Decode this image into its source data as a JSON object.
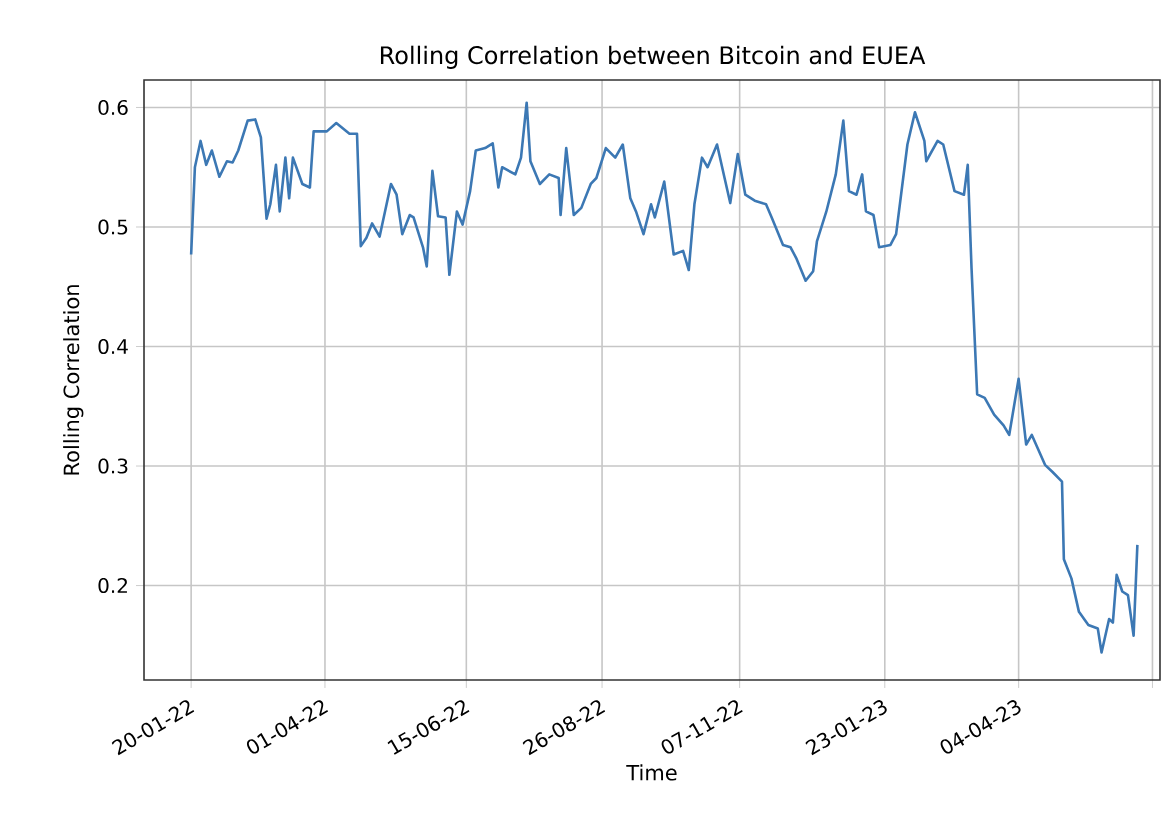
{
  "chart_data": {
    "type": "line",
    "title": "Rolling Correlation between Bitcoin and EUEA",
    "xlabel": "Time",
    "ylabel": "Rolling Correlation",
    "x": [
      "2022-01-20",
      "2022-01-22",
      "2022-01-25",
      "2022-01-28",
      "2022-01-31",
      "2022-02-04",
      "2022-02-08",
      "2022-02-11",
      "2022-02-14",
      "2022-02-19",
      "2022-02-23",
      "2022-02-26",
      "2022-03-01",
      "2022-03-03",
      "2022-03-06",
      "2022-03-08",
      "2022-03-11",
      "2022-03-13",
      "2022-03-15",
      "2022-03-20",
      "2022-03-24",
      "2022-03-26",
      "2022-04-02",
      "2022-04-07",
      "2022-04-14",
      "2022-04-18",
      "2022-04-20",
      "2022-04-23",
      "2022-04-26",
      "2022-04-30",
      "2022-05-06",
      "2022-05-09",
      "2022-05-12",
      "2022-05-16",
      "2022-05-18",
      "2022-05-23",
      "2022-05-25",
      "2022-05-28",
      "2022-05-31",
      "2022-06-04",
      "2022-06-06",
      "2022-06-10",
      "2022-06-13",
      "2022-06-17",
      "2022-06-20",
      "2022-06-25",
      "2022-06-29",
      "2022-07-02",
      "2022-07-04",
      "2022-07-11",
      "2022-07-14",
      "2022-07-17",
      "2022-07-19",
      "2022-07-24",
      "2022-07-29",
      "2022-08-03",
      "2022-08-04",
      "2022-08-07",
      "2022-08-11",
      "2022-08-15",
      "2022-08-20",
      "2022-08-23",
      "2022-08-28",
      "2022-09-02",
      "2022-09-06",
      "2022-09-10",
      "2022-09-13",
      "2022-09-17",
      "2022-09-21",
      "2022-09-23",
      "2022-09-28",
      "2022-10-03",
      "2022-10-08",
      "2022-10-11",
      "2022-10-14",
      "2022-10-18",
      "2022-10-21",
      "2022-10-26",
      "2022-10-30",
      "2022-11-02",
      "2022-11-06",
      "2022-11-10",
      "2022-11-15",
      "2022-11-21",
      "2022-11-24",
      "2022-11-30",
      "2022-12-04",
      "2022-12-07",
      "2022-12-12",
      "2022-12-16",
      "2022-12-18",
      "2022-12-23",
      "2022-12-28",
      "2023-01-01",
      "2023-01-04",
      "2023-01-08",
      "2023-01-11",
      "2023-01-13",
      "2023-01-17",
      "2023-01-20",
      "2023-01-26",
      "2023-01-29",
      "2023-02-04",
      "2023-02-08",
      "2023-02-13",
      "2023-02-14",
      "2023-02-20",
      "2023-02-23",
      "2023-03-01",
      "2023-03-06",
      "2023-03-08",
      "2023-03-10",
      "2023-03-13",
      "2023-03-17",
      "2023-03-22",
      "2023-03-27",
      "2023-03-30",
      "2023-04-04",
      "2023-04-08",
      "2023-04-11",
      "2023-04-18",
      "2023-04-22",
      "2023-04-27",
      "2023-04-28",
      "2023-05-02",
      "2023-05-06",
      "2023-05-11",
      "2023-05-16",
      "2023-05-18",
      "2023-05-22",
      "2023-05-24",
      "2023-05-26",
      "2023-05-29",
      "2023-06-01",
      "2023-06-04",
      "2023-06-06"
    ],
    "series": [
      {
        "color": "#3c78b4",
        "values": [
          0.477,
          0.55,
          0.572,
          0.552,
          0.564,
          0.542,
          0.555,
          0.554,
          0.564,
          0.589,
          0.59,
          0.575,
          0.507,
          0.519,
          0.552,
          0.513,
          0.558,
          0.524,
          0.558,
          0.536,
          0.533,
          0.58,
          0.58,
          0.587,
          0.578,
          0.578,
          0.484,
          0.491,
          0.503,
          0.492,
          0.536,
          0.527,
          0.494,
          0.51,
          0.508,
          0.483,
          0.467,
          0.547,
          0.509,
          0.508,
          0.46,
          0.513,
          0.502,
          0.53,
          0.564,
          0.566,
          0.57,
          0.533,
          0.55,
          0.544,
          0.558,
          0.604,
          0.555,
          0.536,
          0.544,
          0.541,
          0.51,
          0.566,
          0.51,
          0.516,
          0.536,
          0.541,
          0.566,
          0.558,
          0.569,
          0.524,
          0.513,
          0.494,
          0.519,
          0.508,
          0.538,
          0.477,
          0.48,
          0.464,
          0.519,
          0.558,
          0.55,
          0.569,
          0.541,
          0.52,
          0.561,
          0.527,
          0.522,
          0.519,
          0.508,
          0.485,
          0.483,
          0.474,
          0.455,
          0.463,
          0.488,
          0.513,
          0.544,
          0.589,
          0.53,
          0.527,
          0.544,
          0.513,
          0.51,
          0.483,
          0.485,
          0.494,
          0.569,
          0.596,
          0.572,
          0.555,
          0.572,
          0.569,
          0.53,
          0.527,
          0.552,
          0.466,
          0.36,
          0.357,
          0.343,
          0.334,
          0.326,
          0.373,
          0.318,
          0.326,
          0.301,
          0.295,
          0.287,
          0.222,
          0.206,
          0.178,
          0.167,
          0.164,
          0.144,
          0.172,
          0.169,
          0.209,
          0.195,
          0.192,
          0.158,
          0.234
        ]
      }
    ],
    "xlim": [
      "2021-12-26",
      "2023-06-18"
    ],
    "ylim": [
      0.121,
      0.623
    ],
    "xticks": [
      {
        "value": "2022-01-20",
        "label": "20-01-22"
      },
      {
        "value": "2022-04-01",
        "label": "01-04-22"
      },
      {
        "value": "2022-06-15",
        "label": "15-06-22"
      },
      {
        "value": "2022-08-26",
        "label": "26-08-22"
      },
      {
        "value": "2022-11-07",
        "label": "07-11-22"
      },
      {
        "value": "2023-01-23",
        "label": "23-01-23"
      },
      {
        "value": "2023-04-04",
        "label": "04-04-23"
      },
      {
        "value": "2023-06-14",
        "label": null
      }
    ],
    "yticks": [
      {
        "value": 0.2,
        "label": "0.2"
      },
      {
        "value": 0.3,
        "label": "0.3"
      },
      {
        "value": 0.4,
        "label": "0.4"
      },
      {
        "value": 0.5,
        "label": "0.5"
      },
      {
        "value": 0.6,
        "label": "0.6"
      }
    ],
    "grid": true
  }
}
